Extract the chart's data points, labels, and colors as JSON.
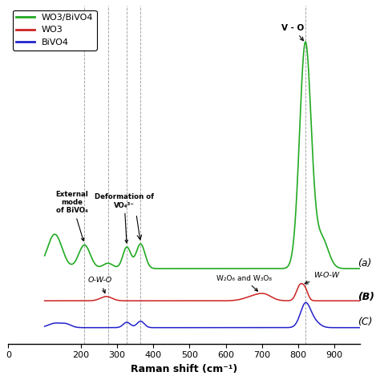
{
  "xlabel": "Raman shift (cm⁻¹)",
  "xlim": [
    100,
    970
  ],
  "xticks": [
    0,
    200,
    300,
    400,
    500,
    600,
    700,
    800,
    900
  ],
  "legend_labels": [
    "WO3/BiVO4",
    "WO3",
    "BiVO4"
  ],
  "legend_colors": [
    "#22aa22",
    "#cc2222",
    "#2222cc"
  ],
  "label_a": "(a)",
  "label_b": "(B)",
  "label_c": "(C)",
  "annotation_external": "External\nmode\nof BiVO₄",
  "annotation_deformation": "Deformation of\nVO₄³⁻",
  "annotation_OWO": "O-W-O",
  "annotation_W2O": "W₂O₆ and W₃O₈",
  "annotation_WOW": "W-O-W",
  "annotation_VO": "V - O",
  "bg_color": "#ffffff",
  "vlines": [
    210,
    327,
    365,
    820
  ],
  "vline2": 275
}
